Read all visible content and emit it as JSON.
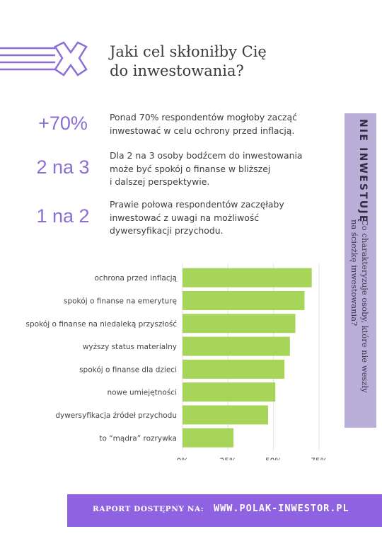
{
  "title": {
    "line1": "Jaki cel skłoniłby Cię",
    "line2": "do inwestowania?"
  },
  "stats": [
    {
      "value": "+70%",
      "lines": [
        "Ponad 70% respondentów mogłoby zacząć",
        "inwestować w celu ochrony przed inflacją."
      ]
    },
    {
      "value": "2 na 3",
      "lines": [
        "Dla 2 na 3 osoby bodźcem do inwestowania",
        "może być spokój o finanse w bliższej",
        "i dalszej perspektywie."
      ]
    },
    {
      "value": "1 na 2",
      "lines": [
        "Prawie połowa respondentów zaczęłaby",
        "inwestować z uwagi na możliwość",
        "dywersyfikacji przychodu."
      ]
    }
  ],
  "sidebar": {
    "label": "NIE INWESTUJĘ",
    "sub_line1": "Co charakteryzuje osoby, które nie weszły",
    "sub_line2": "na ścieżkę inwestowania?"
  },
  "chart_data": {
    "type": "bar",
    "orientation": "horizontal",
    "categories": [
      "ochrona przed inflacją",
      "spokój o finanse na emeryturę",
      "spokój o finanse na niedaleką przyszłość",
      "wyższy status materialny",
      "spokój o finanse dla dzieci",
      "nowe umiejętności",
      "dywersyfikacja źródeł przychodu",
      "to “mądra” rozrywka"
    ],
    "values": [
      71,
      67,
      62,
      59,
      56,
      51,
      47,
      28
    ],
    "xlim": [
      0,
      75
    ],
    "xticks": [
      0,
      25,
      50,
      75
    ],
    "xtick_labels": [
      "0%",
      "25%",
      "50%",
      "75%"
    ],
    "grid": "vertical",
    "bar_color": "#a6d55a",
    "grid_color": "#e2e2e2"
  },
  "footer": {
    "label": "RAPORT DOSTĘPNY NA:",
    "link": "WWW.POLAK-INWESTOR.PL"
  },
  "colors": {
    "accent": "#8b6fd4",
    "sidebar": "#b8aed8",
    "footer": "#8f62e2"
  }
}
